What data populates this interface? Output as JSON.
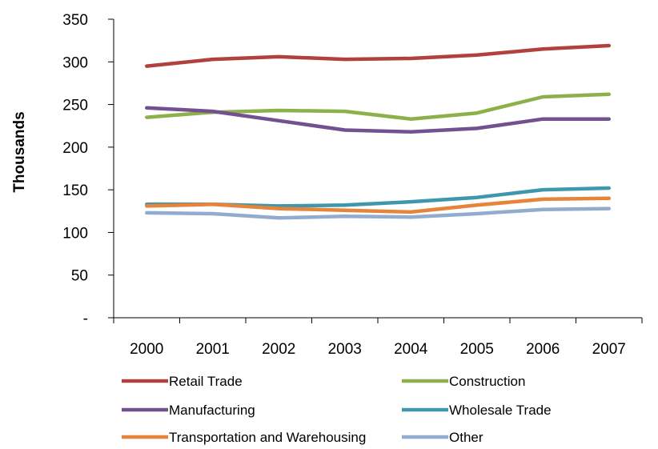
{
  "chart_data": {
    "type": "line",
    "title": "",
    "xlabel": "",
    "ylabel": "Thousands",
    "ylim": [
      0,
      350
    ],
    "y_ticks": [
      0,
      50,
      100,
      150,
      200,
      250,
      300,
      350
    ],
    "y_tick_labels": [
      "-",
      "50",
      "100",
      "150",
      "200",
      "250",
      "300",
      "350"
    ],
    "categories": [
      "2000",
      "2001",
      "2002",
      "2003",
      "2004",
      "2005",
      "2006",
      "2007"
    ],
    "grid": false,
    "legend_position": "bottom",
    "series": [
      {
        "name": "Retail Trade",
        "color": "#b0413e",
        "values": [
          295,
          303,
          306,
          303,
          304,
          308,
          315,
          319
        ]
      },
      {
        "name": "Construction",
        "color": "#8db04a",
        "values": [
          235,
          241,
          243,
          242,
          233,
          240,
          259,
          262
        ]
      },
      {
        "name": "Manufacturing",
        "color": "#73508f",
        "values": [
          246,
          242,
          231,
          220,
          218,
          222,
          233,
          233
        ]
      },
      {
        "name": "Wholesale Trade",
        "color": "#3e97ab",
        "values": [
          133,
          133,
          131,
          132,
          136,
          141,
          150,
          152
        ]
      },
      {
        "name": "Transportation and Warehousing",
        "color": "#e6843b",
        "values": [
          131,
          133,
          128,
          126,
          124,
          132,
          139,
          140
        ]
      },
      {
        "name": "Other",
        "color": "#92acd0",
        "values": [
          123,
          122,
          117,
          119,
          118,
          122,
          127,
          128
        ]
      }
    ]
  }
}
